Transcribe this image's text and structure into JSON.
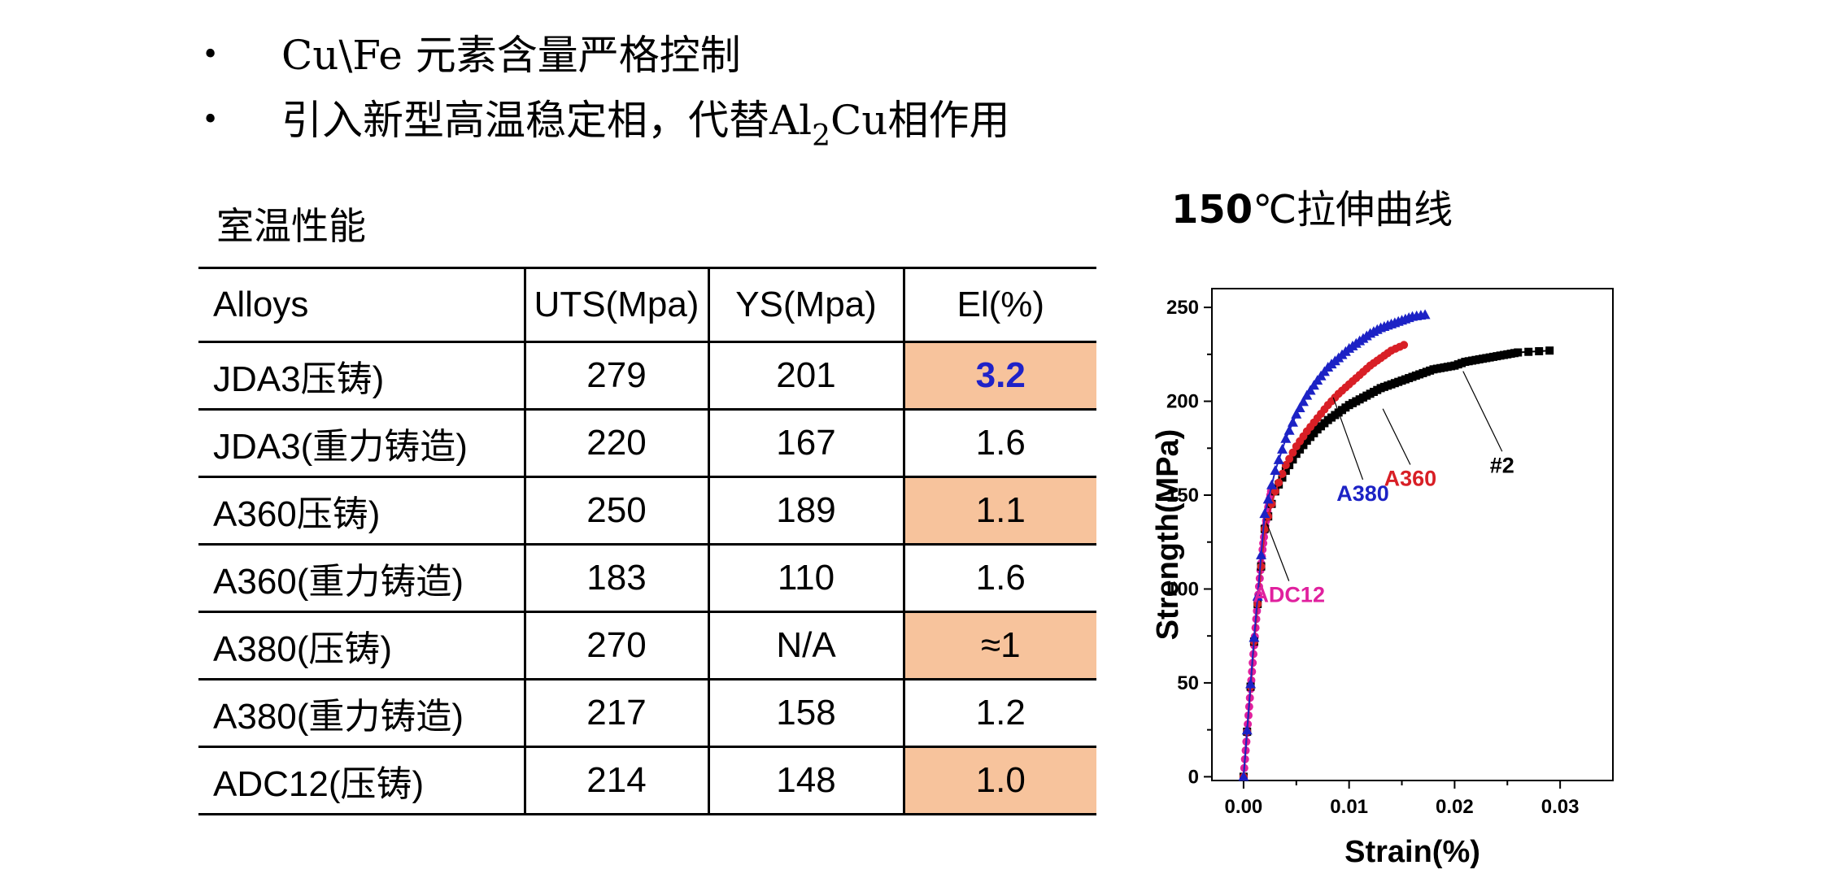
{
  "bullets": [
    {
      "bullet": "•",
      "text": "Cu\\Fe 元素含量严格控制"
    },
    {
      "bullet": "•",
      "text_before": "引入新型高温稳定相，代替Al",
      "subscript": "2",
      "text_after": "Cu相作用"
    }
  ],
  "table": {
    "title": "室温性能",
    "headers": [
      "Alloys",
      "UTS(Mpa)",
      "YS(Mpa)",
      "El(%)"
    ],
    "rows": [
      {
        "alloy": "JDA3压铸)",
        "uts": "279",
        "ys": "201",
        "el": "3.2",
        "highlight": true,
        "emphasis": true
      },
      {
        "alloy": "JDA3(重力铸造)",
        "uts": "220",
        "ys": "167",
        "el": "1.6",
        "highlight": false,
        "emphasis": false
      },
      {
        "alloy": "A360压铸)",
        "uts": "250",
        "ys": "189",
        "el": "1.1",
        "highlight": true,
        "emphasis": false
      },
      {
        "alloy": "A360(重力铸造)",
        "uts": "183",
        "ys": "110",
        "el": "1.6",
        "highlight": false,
        "emphasis": false
      },
      {
        "alloy": "A380(压铸)",
        "uts": "270",
        "ys": "N/A",
        "el": "≈1",
        "highlight": true,
        "emphasis": false
      },
      {
        "alloy": "A380(重力铸造)",
        "uts": "217",
        "ys": "158",
        "el": "1.2",
        "highlight": false,
        "emphasis": false
      },
      {
        "alloy": "ADC12(压铸)",
        "uts": "214",
        "ys": "148",
        "el": "1.0",
        "highlight": true,
        "emphasis": false
      }
    ],
    "highlight_color": "#f7c39c",
    "emphasis_color": "#1f22c8"
  },
  "chart_title": {
    "num": "150",
    "rest": "℃拉伸曲线"
  },
  "chart_data": {
    "type": "line",
    "title": "150℃拉伸曲线",
    "xlabel": "Strain(%)",
    "ylabel": "Strength(MPa)",
    "xlim": [
      -0.003,
      0.035
    ],
    "ylim": [
      -2,
      260
    ],
    "xticks": [
      "0.00",
      "0.01",
      "0.02",
      "0.03"
    ],
    "yticks": [
      "0",
      "50",
      "100",
      "150",
      "200",
      "250"
    ],
    "grid": false,
    "series": [
      {
        "name": "ADC12",
        "color": "#e0209e",
        "marker": "circle",
        "x": [
          0,
          0.0002,
          0.0004,
          0.0006,
          0.0008,
          0.001,
          0.0012,
          0.0014,
          0.0016,
          0.0018,
          0.002,
          0.0022,
          0.0024,
          0.0026
        ],
        "y": [
          0,
          14,
          28,
          42,
          56,
          70,
          84,
          97,
          110,
          121,
          131,
          139,
          146,
          152
        ]
      },
      {
        "name": "#2",
        "color": "#000000",
        "marker": "square",
        "x": [
          0,
          0.001,
          0.002,
          0.003,
          0.004,
          0.005,
          0.006,
          0.007,
          0.008,
          0.009,
          0.01,
          0.011,
          0.012,
          0.013,
          0.014,
          0.015,
          0.016,
          0.017,
          0.018,
          0.019,
          0.02,
          0.021,
          0.022,
          0.023,
          0.024,
          0.025,
          0.026,
          0.029
        ],
        "y": [
          0,
          72,
          132,
          152,
          163,
          172,
          179,
          185,
          190,
          194,
          198,
          201,
          204,
          207,
          209,
          211,
          213,
          215,
          217,
          218,
          219,
          221,
          222,
          223,
          224,
          225,
          226,
          227
        ]
      },
      {
        "name": "A360",
        "color": "#d81f26",
        "marker": "circle",
        "x": [
          0,
          0.001,
          0.002,
          0.003,
          0.004,
          0.005,
          0.006,
          0.007,
          0.008,
          0.009,
          0.01,
          0.011,
          0.012,
          0.013,
          0.014,
          0.0152
        ],
        "y": [
          0,
          72,
          132,
          152,
          166,
          176,
          184,
          191,
          198,
          204,
          209,
          214,
          219,
          223,
          227,
          230
        ]
      },
      {
        "name": "A380",
        "color": "#1c22c5",
        "marker": "triangle",
        "x": [
          0,
          0.001,
          0.002,
          0.003,
          0.004,
          0.005,
          0.006,
          0.007,
          0.008,
          0.009,
          0.01,
          0.011,
          0.012,
          0.013,
          0.014,
          0.015,
          0.016,
          0.0172
        ],
        "y": [
          0,
          74,
          140,
          163,
          180,
          193,
          203,
          211,
          218,
          223,
          228,
          232,
          236,
          239,
          241,
          243,
          245,
          246
        ]
      }
    ],
    "annotations": [
      {
        "label": "A380",
        "color": "#1c22c5",
        "point": [
          0.0085,
          202
        ],
        "text_at": [
          0.0113,
          147
        ]
      },
      {
        "label": "A360",
        "color": "#d81f26",
        "point": [
          0.0132,
          196
        ],
        "text_at": [
          0.0158,
          155
        ]
      },
      {
        "label": "#2",
        "color": "#000000",
        "point": [
          0.0208,
          216
        ],
        "text_at": [
          0.0245,
          162
        ]
      },
      {
        "label": "ADC12",
        "color": "#e0209e",
        "point": [
          0.0022,
          135
        ],
        "text_at": [
          0.0043,
          93
        ]
      }
    ]
  }
}
